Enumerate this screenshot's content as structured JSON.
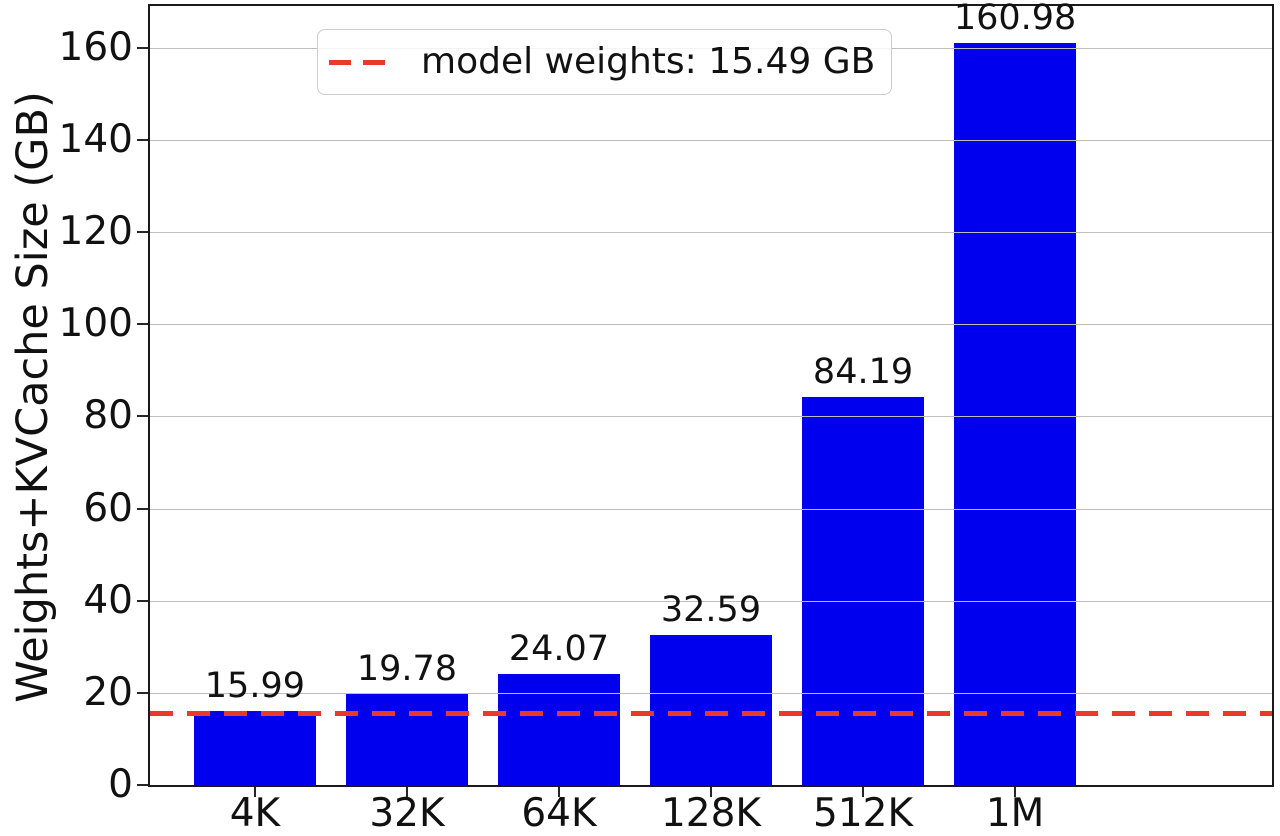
{
  "chart_data": {
    "type": "bar",
    "title": "",
    "categories": [
      "4K",
      "32K",
      "64K",
      "128K",
      "512K",
      "1M"
    ],
    "values": [
      15.99,
      19.78,
      24.07,
      32.59,
      84.19,
      160.98
    ],
    "value_labels": [
      "15.99",
      "19.78",
      "24.07",
      "32.59",
      "84.19",
      "160.98"
    ],
    "xlabel": "",
    "ylabel": "Weights+KVCache Size (GB)",
    "yticks": [
      0,
      20,
      40,
      60,
      80,
      100,
      120,
      140,
      160
    ],
    "ylim": [
      0,
      169.1
    ],
    "grid": true,
    "grid_axis": "y",
    "legend_position": "upper-left",
    "legend": {
      "entries": [
        {
          "label": "model weights: 15.49 GB",
          "swatch": "red-dashed-line"
        }
      ]
    },
    "reference_line": {
      "value": 15.49,
      "style": "dashed"
    },
    "colors": {
      "bar": "#0000ee",
      "reference_line": "#e8392a",
      "grid": "#bdbdbd",
      "axis": "#1a1a1a",
      "text": "#111111"
    }
  }
}
